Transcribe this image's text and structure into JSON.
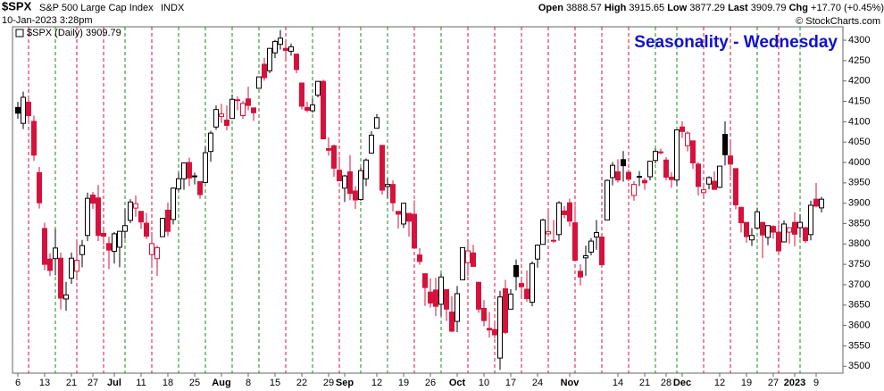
{
  "chart_data": {
    "type": "candlestick",
    "symbol": "$SPX",
    "name": "S&P 500 Large Cap Index",
    "exchange": "INDX",
    "timestamp": "10-Jan-2023 3:28pm",
    "quote": {
      "open_label": "Open",
      "open": 3888.57,
      "high_label": "High",
      "high": 3915.65,
      "low_label": "Low",
      "low": 3877.29,
      "last_label": "Last",
      "last": 3909.79,
      "chg_label": "Chg",
      "chg": "+17.70 (+0.45%)"
    },
    "credit": "© StockCharts.com",
    "legend": "$SPX (Daily) 3909.79",
    "annotation": "Seasonality - Wednesday",
    "up_color": "#000000",
    "down_color": "#d6123c",
    "up_line_color": "#1a8a1a",
    "ylim": [
      3483,
      4333
    ],
    "yticks": [
      3500,
      3550,
      3600,
      3650,
      3700,
      3750,
      3800,
      3850,
      3900,
      3950,
      4000,
      4050,
      4100,
      4150,
      4200,
      4250,
      4300
    ],
    "highlight_days": [
      2,
      7,
      11,
      16,
      20,
      25,
      30,
      35,
      40,
      45,
      50,
      55,
      60,
      64,
      69,
      74,
      79,
      84,
      89,
      94,
      99,
      104,
      109,
      114,
      119,
      123,
      128,
      133,
      138,
      142,
      146
    ],
    "categories": [
      "6",
      null,
      null,
      null,
      null,
      "13",
      null,
      null,
      null,
      null,
      "21",
      null,
      null,
      null,
      "27",
      null,
      null,
      null,
      "Jul",
      null,
      null,
      null,
      null,
      "11",
      null,
      null,
      null,
      null,
      "18",
      null,
      null,
      null,
      null,
      "25",
      null,
      null,
      null,
      null,
      "Aug",
      null,
      null,
      null,
      null,
      "8",
      null,
      null,
      null,
      null,
      "15",
      null,
      null,
      null,
      null,
      "22",
      null,
      null,
      null,
      null,
      "29",
      null,
      null,
      "Sep",
      null,
      null,
      null,
      null,
      null,
      "12",
      null,
      null,
      null,
      null,
      "19",
      null,
      null,
      null,
      null,
      "26",
      null,
      null,
      null,
      null,
      "Oct",
      null,
      null,
      null,
      null,
      "10",
      null,
      null,
      null,
      null,
      "17",
      null,
      null,
      null,
      null,
      "24",
      null,
      null,
      null,
      null,
      null,
      "Nov",
      null,
      null,
      null,
      null,
      null,
      null,
      null,
      null,
      "14",
      null,
      null,
      null,
      null,
      "21",
      null,
      null,
      null,
      "28",
      null,
      null,
      "Dec",
      null,
      null,
      null,
      null,
      null,
      null,
      "12",
      null,
      null,
      null,
      null,
      "19",
      null,
      null,
      null,
      null,
      "27",
      null,
      null,
      null,
      "2023",
      null,
      null,
      null,
      "9",
      null
    ],
    "open": [
      4135,
      4096,
      4148,
      4101,
      3975,
      3838,
      3763,
      3764,
      3765,
      3665,
      3716,
      3733,
      3774,
      3821,
      3920,
      3913,
      3826,
      3801,
      3782,
      3792,
      3831,
      3858,
      3888,
      3880,
      3851,
      3774,
      3764,
      3818,
      3883,
      3860,
      3935,
      3960,
      4000,
      3965,
      3953,
      3951,
      4027,
      4087,
      4113,
      4104,
      4108,
      4154,
      4115,
      4156,
      4134,
      4182,
      4241,
      4225,
      4269,
      4290,
      4280,
      4273,
      4266,
      4195,
      4135,
      4127,
      4165,
      4199,
      4034,
      4041,
      3981,
      3937,
      3977,
      3930,
      3909,
      3960,
      4023,
      4084,
      4042,
      3941,
      3946,
      3880,
      3849,
      3875,
      3873,
      3773,
      3727,
      3682,
      3687,
      3652,
      3688,
      3633,
      3610,
      3712,
      3754,
      3778,
      3706,
      3642,
      3593,
      3590,
      3520,
      3690,
      3640,
      3747,
      3703,
      3689,
      3657,
      3763,
      3799,
      3825,
      3809,
      3823,
      3881,
      3901,
      3852,
      3733,
      3766,
      3780,
      3817,
      3817,
      3859,
      3963,
      3977,
      4007,
      3976,
      3919,
      3966,
      3956,
      3965,
      4005,
      4024,
      4006,
      3964,
      3957,
      4087,
      4041,
      4053,
      3996,
      3926,
      3947,
      3954,
      3939,
      4069,
      4016,
      3985,
      3890,
      3853,
      3810,
      3839,
      3853,
      3816,
      3843,
      3829,
      3805,
      3829,
      3853,
      3840,
      3840,
      3823,
      3910,
      3888.57
    ],
    "high": [
      4149,
      4174,
      4162,
      4115,
      3989,
      3852,
      3777,
      3837,
      3779,
      3707,
      3779,
      3809,
      3810,
      3926,
      3928,
      3945,
      3837,
      3818,
      3829,
      3832,
      3887,
      3910,
      3919,
      3880,
      3876,
      3829,
      3796,
      3863,
      3902,
      3939,
      3975,
      3999,
      4012,
      3975,
      3954,
      4039,
      4078,
      4140,
      4144,
      4140,
      4167,
      4162,
      4151,
      4186,
      4134,
      4211,
      4257,
      4280,
      4301,
      4325,
      4302,
      4292,
      4266,
      4195,
      4149,
      4157,
      4200,
      4203,
      4062,
      4044,
      4015,
      3970,
      4018,
      3942,
      3987,
      4010,
      4077,
      4119,
      4042,
      3961,
      3956,
      3880,
      3901,
      3876,
      3907,
      3790,
      3727,
      3716,
      3717,
      3727,
      3688,
      3672,
      3697,
      3791,
      3807,
      3798,
      3706,
      3662,
      3633,
      3605,
      3685,
      3712,
      3689,
      3762,
      3720,
      3735,
      3757,
      3799,
      3862,
      3886,
      3859,
      3905,
      3893,
      3911,
      3894,
      3750,
      3796,
      3814,
      3859,
      3818,
      3958,
      4001,
      4008,
      4028,
      3983,
      3954,
      3979,
      3962,
      4004,
      4034,
      4034,
      4013,
      3976,
      4080,
      4101,
      4077,
      4053,
      4001,
      3950,
      3966,
      3978,
      3991,
      4101,
      4053,
      3985,
      3890,
      3854,
      3839,
      3889,
      3853,
      3845,
      3846,
      3848,
      3858,
      3840,
      3878,
      3873,
      3840,
      3906,
      3950,
      3915.65
    ],
    "low": [
      4107,
      4082,
      4101,
      4004,
      3887,
      3736,
      3721,
      3723,
      3639,
      3636,
      3702,
      3717,
      3743,
      3807,
      3886,
      3807,
      3799,
      3738,
      3752,
      3743,
      3813,
      3851,
      3867,
      3837,
      3812,
      3741,
      3722,
      3817,
      3819,
      3848,
      3929,
      3933,
      3942,
      3946,
      3911,
      3950,
      4002,
      4080,
      4097,
      4079,
      4108,
      4128,
      4107,
      4128,
      4102,
      4182,
      4201,
      4219,
      4256,
      4277,
      4253,
      4262,
      4219,
      4130,
      4123,
      4122,
      4160,
      4057,
      4017,
      3965,
      3954,
      3903,
      3907,
      3886,
      3906,
      3942,
      4023,
      4084,
      3921,
      3912,
      3880,
      3838,
      3839,
      3818,
      3789,
      3749,
      3648,
      3644,
      3623,
      3623,
      3611,
      3584,
      3584,
      3712,
      3722,
      3744,
      3631,
      3598,
      3570,
      3568,
      3491,
      3579,
      3640,
      3686,
      3667,
      3658,
      3647,
      3742,
      3799,
      3824,
      3803,
      3808,
      3863,
      3843,
      3758,
      3698,
      3722,
      3772,
      3786,
      3747,
      3859,
      3944,
      3951,
      3953,
      3954,
      3906,
      3942,
      3933,
      3956,
      3998,
      4020,
      3956,
      3938,
      3943,
      4060,
      4027,
      3984,
      3919,
      3919,
      3934,
      3933,
      3937,
      3993,
      3966,
      3885,
      3828,
      3803,
      3795,
      3839,
      3765,
      3797,
      3813,
      3780,
      3805,
      3801,
      3794,
      3815,
      3802,
      3809,
      3890,
      3877.29
    ],
    "close": [
      4121,
      4160,
      4115,
      4018,
      3901,
      3750,
      3735,
      3790,
      3667,
      3675,
      3765,
      3760,
      3796,
      3912,
      3900,
      3821,
      3819,
      3785,
      3825,
      3831,
      3845,
      3903,
      3899,
      3854,
      3819,
      3801,
      3791,
      3863,
      3831,
      3937,
      3960,
      3999,
      3962,
      3967,
      3921,
      4024,
      4072,
      4130,
      4119,
      4091,
      4155,
      4152,
      4145,
      4140,
      4122,
      4210,
      4208,
      4280,
      4297,
      4305,
      4275,
      4284,
      4228,
      4138,
      4128,
      4141,
      4199,
      4058,
      4030,
      3986,
      3955,
      3967,
      3924,
      3908,
      3980,
      4006,
      4067,
      4110,
      3932,
      3946,
      3901,
      3873,
      3900,
      3856,
      3790,
      3757,
      3693,
      3655,
      3647,
      3719,
      3640,
      3586,
      3678,
      3791,
      3783,
      3745,
      3640,
      3612,
      3589,
      3577,
      3670,
      3583,
      3677,
      3720,
      3695,
      3666,
      3752,
      3797,
      3859,
      3830,
      3807,
      3901,
      3872,
      3856,
      3760,
      3719,
      3771,
      3807,
      3828,
      3749,
      3956,
      3993,
      3957,
      3992,
      3959,
      3946,
      3965,
      3950,
      4003,
      4027,
      4026,
      3964,
      3958,
      4080,
      4076,
      4072,
      3999,
      3941,
      3933,
      3963,
      3934,
      3991,
      4019,
      3996,
      3896,
      3852,
      3818,
      3821,
      3879,
      3822,
      3845,
      3829,
      3783,
      3849,
      3840,
      3824,
      3853,
      3808,
      3895,
      3893,
      3909.79
    ]
  }
}
